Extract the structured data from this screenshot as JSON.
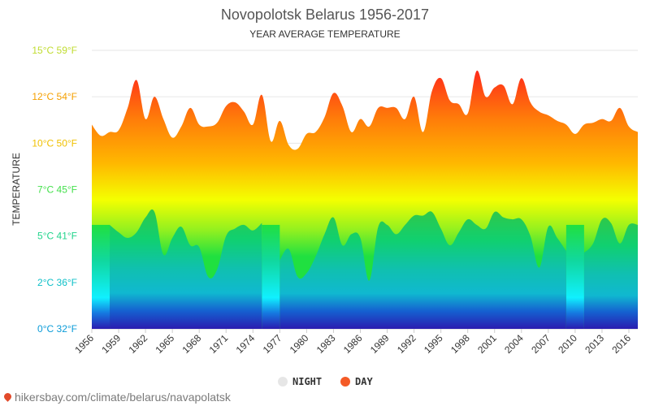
{
  "chart_data": {
    "type": "area",
    "title": "Novopolotsk Belarus 1956-2017",
    "subtitle": "YEAR AVERAGE TEMPERATURE",
    "ylabel": "TEMPERATURE",
    "ylim": [
      0,
      15
    ],
    "y_ticks": [
      "0°C 32°F",
      "2°C 36°F",
      "5°C 41°F",
      "7°C 45°F",
      "10°C 50°F",
      "12°C 54°F",
      "15°C 59°F"
    ],
    "y_tick_colors": [
      "#0a9bd8",
      "#0fc0c8",
      "#22d48c",
      "#44e04c",
      "#f0c000",
      "#f5a000",
      "#c0dc30"
    ],
    "x_ticks": [
      "1956",
      "1959",
      "1962",
      "1965",
      "1968",
      "1971",
      "1974",
      "1977",
      "1980",
      "1983",
      "1986",
      "1989",
      "1992",
      "1995",
      "1998",
      "2001",
      "2004",
      "2007",
      "2010",
      "2013",
      "2016"
    ],
    "x": [
      1956,
      1957,
      1958,
      1959,
      1960,
      1961,
      1962,
      1963,
      1964,
      1965,
      1966,
      1967,
      1968,
      1969,
      1970,
      1971,
      1972,
      1973,
      1974,
      1975,
      1976,
      1977,
      1978,
      1979,
      1980,
      1981,
      1982,
      1983,
      1984,
      1985,
      1986,
      1987,
      1988,
      1989,
      1990,
      1991,
      1992,
      1993,
      1994,
      1995,
      1996,
      1997,
      1998,
      1999,
      2000,
      2001,
      2002,
      2003,
      2004,
      2005,
      2006,
      2007,
      2008,
      2009,
      2010,
      2011,
      2012,
      2013,
      2014,
      2015,
      2016,
      2017
    ],
    "grid": true,
    "legend_position": "bottom",
    "series": [
      {
        "name": "DAY",
        "color": "#f45b27",
        "values": [
          11.0,
          10.4,
          10.6,
          10.7,
          11.9,
          13.4,
          11.3,
          12.5,
          11.3,
          10.3,
          10.9,
          11.9,
          11.0,
          10.9,
          11.1,
          12.0,
          12.2,
          11.7,
          11.0,
          12.6,
          10.1,
          11.2,
          9.9,
          9.7,
          10.5,
          10.6,
          11.4,
          12.7,
          12.0,
          10.6,
          11.3,
          10.9,
          11.9,
          11.9,
          11.9,
          11.3,
          12.5,
          10.6,
          12.8,
          13.5,
          12.3,
          12.1,
          11.6,
          13.9,
          12.5,
          13.0,
          13.1,
          12.1,
          13.5,
          12.2,
          11.7,
          11.5,
          11.2,
          11.0,
          10.5,
          11.0,
          11.1,
          11.3,
          11.2,
          11.9,
          10.9,
          10.6
        ]
      },
      {
        "name": "NIGHT",
        "color": "#e6e6e6",
        "values": [
          null,
          null,
          5.6,
          5.2,
          4.9,
          5.2,
          6.0,
          6.3,
          4.0,
          4.9,
          5.5,
          4.5,
          4.4,
          2.8,
          3.2,
          5.0,
          5.4,
          5.6,
          5.3,
          5.7,
          null,
          3.7,
          4.3,
          2.8,
          3.0,
          3.9,
          5.1,
          6.0,
          4.5,
          5.1,
          4.9,
          2.6,
          5.5,
          5.6,
          5.1,
          5.6,
          6.1,
          6.1,
          6.3,
          5.4,
          4.5,
          5.2,
          5.9,
          5.6,
          5.4,
          6.3,
          6.0,
          5.9,
          5.9,
          5.0,
          3.3,
          5.5,
          4.9,
          4.2,
          null,
          4.1,
          4.6,
          5.9,
          5.7,
          4.6,
          5.6,
          5.6
        ]
      }
    ]
  },
  "legend": {
    "night_label": "NIGHT",
    "day_label": "DAY"
  },
  "source": {
    "text": "hikersbay.com/climate/belarus/navapolatsk"
  }
}
